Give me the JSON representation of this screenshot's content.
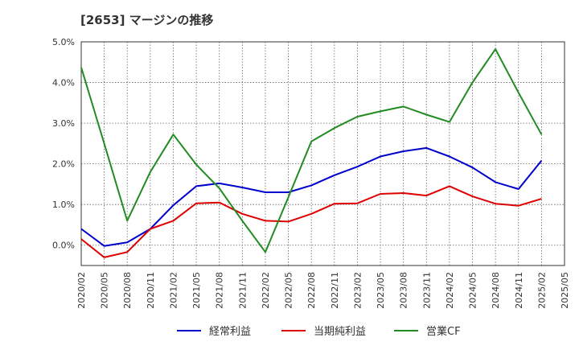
{
  "chart_data": {
    "type": "line",
    "title": "[2653]  マージンの推移",
    "xlabel": "",
    "ylabel": "",
    "ylim": [
      -0.5,
      5.0
    ],
    "y_ticks": [
      0.0,
      1.0,
      2.0,
      3.0,
      4.0,
      5.0
    ],
    "y_tick_labels": [
      "0.0%",
      "1.0%",
      "2.0%",
      "3.0%",
      "4.0%",
      "5.0%"
    ],
    "grid": true,
    "legend_position": "bottom",
    "x": [
      "2020/02",
      "2020/05",
      "2020/08",
      "2020/11",
      "2021/02",
      "2021/05",
      "2021/08",
      "2021/11",
      "2022/02",
      "2022/05",
      "2022/08",
      "2022/11",
      "2023/02",
      "2023/05",
      "2023/08",
      "2023/11",
      "2024/02",
      "2024/05",
      "2024/08",
      "2024/11",
      "2025/02",
      "2025/05"
    ],
    "series": [
      {
        "name": "経常利益",
        "color": "#0000cc",
        "values": [
          0.4,
          -0.02,
          0.07,
          0.4,
          0.98,
          1.45,
          1.52,
          1.42,
          1.3,
          1.3,
          1.47,
          1.72,
          1.93,
          2.18,
          2.31,
          2.39,
          2.18,
          1.91,
          1.55,
          1.38,
          2.08,
          null
        ]
      },
      {
        "name": "当期純利益",
        "color": "#dd0000",
        "values": [
          0.15,
          -0.3,
          -0.17,
          0.4,
          0.6,
          1.03,
          1.05,
          0.77,
          0.6,
          0.58,
          0.77,
          1.02,
          1.03,
          1.26,
          1.28,
          1.22,
          1.45,
          1.2,
          1.02,
          0.97,
          1.14,
          null
        ]
      },
      {
        "name": "営業CF",
        "color": "#228B22",
        "values": [
          4.37,
          2.5,
          0.6,
          1.8,
          2.72,
          1.98,
          1.4,
          0.6,
          -0.17,
          1.18,
          2.55,
          2.88,
          3.16,
          3.29,
          3.41,
          3.21,
          3.03,
          4.0,
          4.82,
          3.75,
          2.72,
          null
        ]
      }
    ]
  }
}
